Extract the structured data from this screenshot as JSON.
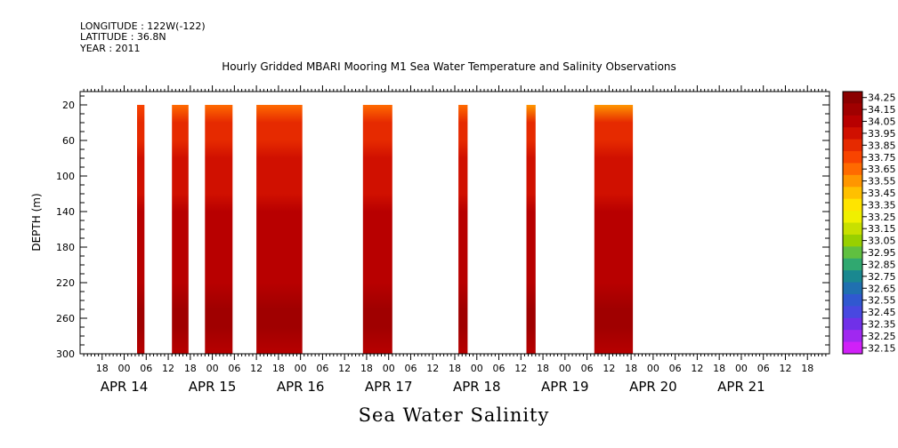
{
  "header": {
    "longitude": "LONGITUDE : 122W(-122)",
    "latitude": "LATITUDE : 36.8N",
    "year": "YEAR : 2011"
  },
  "chart_data": {
    "type": "heatmap",
    "title": "Hourly Gridded MBARI Mooring M1 Sea Water Temperature and Salinity Observations",
    "xlabel": "Sea Water Salinity",
    "ylabel": "DEPTH (m)",
    "x_unit": "hours from APR 13 12:00, 2011",
    "xlim": [
      0,
      204
    ],
    "ylim": [
      300,
      5
    ],
    "y_ticks": [
      20,
      60,
      100,
      140,
      180,
      220,
      260,
      300
    ],
    "x_hour_ticks": [
      {
        "h": 6,
        "label": "18"
      },
      {
        "h": 12,
        "label": "00"
      },
      {
        "h": 18,
        "label": "06"
      },
      {
        "h": 24,
        "label": "12"
      },
      {
        "h": 30,
        "label": "18"
      },
      {
        "h": 36,
        "label": "00"
      },
      {
        "h": 42,
        "label": "06"
      },
      {
        "h": 48,
        "label": "12"
      },
      {
        "h": 54,
        "label": "18"
      },
      {
        "h": 60,
        "label": "00"
      },
      {
        "h": 66,
        "label": "06"
      },
      {
        "h": 72,
        "label": "12"
      },
      {
        "h": 78,
        "label": "18"
      },
      {
        "h": 84,
        "label": "00"
      },
      {
        "h": 90,
        "label": "06"
      },
      {
        "h": 96,
        "label": "12"
      },
      {
        "h": 102,
        "label": "18"
      },
      {
        "h": 108,
        "label": "00"
      },
      {
        "h": 114,
        "label": "06"
      },
      {
        "h": 120,
        "label": "12"
      },
      {
        "h": 126,
        "label": "18"
      },
      {
        "h": 132,
        "label": "00"
      },
      {
        "h": 138,
        "label": "06"
      },
      {
        "h": 144,
        "label": "12"
      },
      {
        "h": 150,
        "label": "18"
      },
      {
        "h": 156,
        "label": "00"
      },
      {
        "h": 162,
        "label": "06"
      },
      {
        "h": 168,
        "label": "12"
      },
      {
        "h": 174,
        "label": "18"
      },
      {
        "h": 180,
        "label": "00"
      },
      {
        "h": 186,
        "label": "06"
      },
      {
        "h": 192,
        "label": "12"
      },
      {
        "h": 198,
        "label": "18"
      }
    ],
    "x_date_labels": [
      {
        "h": 12,
        "label": "APR 14"
      },
      {
        "h": 36,
        "label": "APR 15"
      },
      {
        "h": 60,
        "label": "APR 16"
      },
      {
        "h": 84,
        "label": "APR 17"
      },
      {
        "h": 108,
        "label": "APR 18"
      },
      {
        "h": 132,
        "label": "APR 19"
      },
      {
        "h": 156,
        "label": "APR 20"
      },
      {
        "h": 180,
        "label": "APR 21"
      }
    ],
    "colorbar_levels": [
      "34.25",
      "34.15",
      "34.05",
      "33.95",
      "33.85",
      "33.75",
      "33.65",
      "33.55",
      "33.45",
      "33.35",
      "33.25",
      "33.15",
      "33.05",
      "32.95",
      "32.85",
      "32.75",
      "32.65",
      "32.55",
      "32.45",
      "32.35",
      "32.25",
      "32.15"
    ],
    "colorbar_colors": [
      "#8b0000",
      "#a00000",
      "#b80000",
      "#d01000",
      "#e62a00",
      "#f84400",
      "#ff6a00",
      "#ff9600",
      "#ffc000",
      "#ffe400",
      "#f0f000",
      "#c8e000",
      "#98d000",
      "#60c040",
      "#30a870",
      "#1a8890",
      "#2070b0",
      "#3058d0",
      "#4848e0",
      "#7030e8",
      "#a028f0",
      "#d020f8"
    ],
    "depth_profile": [
      {
        "depth": 20,
        "value": 33.7
      },
      {
        "depth": 40,
        "value": 33.82
      },
      {
        "depth": 60,
        "value": 33.87
      },
      {
        "depth": 80,
        "value": 33.92
      },
      {
        "depth": 100,
        "value": 33.95
      },
      {
        "depth": 120,
        "value": 33.98
      },
      {
        "depth": 140,
        "value": 34.02
      },
      {
        "depth": 180,
        "value": 34.04
      },
      {
        "depth": 220,
        "value": 34.08
      },
      {
        "depth": 250,
        "value": 34.15
      },
      {
        "depth": 270,
        "value": 34.1
      },
      {
        "depth": 300,
        "value": 34.06
      }
    ],
    "segments": [
      {
        "start": 15.5,
        "end": 17.5,
        "surface": 33.74
      },
      {
        "start": 25,
        "end": 29.5,
        "surface": 33.66
      },
      {
        "start": 34,
        "end": 41.5,
        "surface": 33.66
      },
      {
        "start": 48,
        "end": 60.5,
        "surface": 33.66
      },
      {
        "start": 77,
        "end": 85,
        "surface": 33.66
      },
      {
        "start": 103,
        "end": 105.5,
        "surface": 33.66
      },
      {
        "start": 121.5,
        "end": 124,
        "surface": 33.58
      },
      {
        "start": 140,
        "end": 150.5,
        "surface": 33.55
      }
    ]
  }
}
